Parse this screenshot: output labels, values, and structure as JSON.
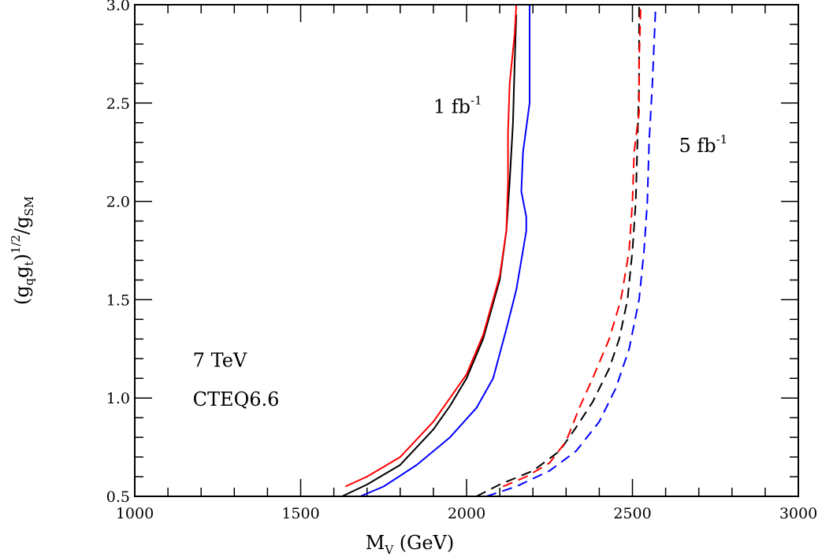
{
  "chart_data": {
    "type": "line",
    "title": "",
    "xlabel": {
      "main": "M",
      "sub": "V",
      "rest": " (GeV)"
    },
    "ylabel": {
      "open": "(g",
      "q": "q",
      "g": "g",
      "t": "t",
      "close": ")",
      "pow": "1/2",
      "slash": "/g",
      "sm": "SM"
    },
    "xlim": [
      1000,
      3000
    ],
    "ylim": [
      0.5,
      3.0
    ],
    "xticks": [
      1000,
      1500,
      2000,
      2500,
      3000
    ],
    "xtick_labels": [
      "1000",
      "1500",
      "2000",
      "2500",
      "3000"
    ],
    "yticks": [
      0.5,
      1.0,
      1.5,
      2.0,
      2.5,
      3.0
    ],
    "ytick_labels": [
      "0.5",
      "1.0",
      "1.5",
      "2.0",
      "2.5",
      "3.0"
    ],
    "x_minor_step": 100,
    "y_minor_step": 0.1,
    "annotations": {
      "lumi1": {
        "text": "1 fb",
        "sup": "-1",
        "x": 1900,
        "y": 2.45
      },
      "lumi5": {
        "text": "5 fb",
        "sup": "-1",
        "x": 2640,
        "y": 2.25
      },
      "energy": {
        "text": "7 TeV",
        "x": 1175,
        "y": 1.16
      },
      "pdf": {
        "text": "CTEQ6.6",
        "x": 1175,
        "y": 0.96
      }
    },
    "series": [
      {
        "name": "1 fb-1 black",
        "color": "#000000",
        "dash": "solid",
        "points": [
          [
            1625,
            0.5
          ],
          [
            1700,
            0.56
          ],
          [
            1800,
            0.66
          ],
          [
            1900,
            0.84
          ],
          [
            1950,
            0.96
          ],
          [
            2000,
            1.1
          ],
          [
            2050,
            1.3
          ],
          [
            2100,
            1.6
          ],
          [
            2120,
            1.85
          ],
          [
            2130,
            2.1
          ],
          [
            2140,
            2.4
          ],
          [
            2145,
            2.7
          ],
          [
            2150,
            2.95
          ]
        ]
      },
      {
        "name": "1 fb-1 red",
        "color": "#ff0000",
        "dash": "solid",
        "points": [
          [
            1635,
            0.55
          ],
          [
            1700,
            0.6
          ],
          [
            1800,
            0.7
          ],
          [
            1900,
            0.88
          ],
          [
            2000,
            1.12
          ],
          [
            2050,
            1.32
          ],
          [
            2100,
            1.62
          ],
          [
            2120,
            1.85
          ],
          [
            2125,
            2.1
          ],
          [
            2125,
            2.35
          ],
          [
            2130,
            2.6
          ],
          [
            2145,
            2.85
          ],
          [
            2150,
            3.0
          ]
        ]
      },
      {
        "name": "1 fb-1 blue",
        "color": "#0000ff",
        "dash": "solid",
        "points": [
          [
            1680,
            0.5
          ],
          [
            1750,
            0.55
          ],
          [
            1850,
            0.66
          ],
          [
            1950,
            0.8
          ],
          [
            2030,
            0.95
          ],
          [
            2080,
            1.1
          ],
          [
            2120,
            1.35
          ],
          [
            2150,
            1.55
          ],
          [
            2170,
            1.75
          ],
          [
            2180,
            1.85
          ],
          [
            2180,
            1.92
          ],
          [
            2165,
            2.05
          ],
          [
            2170,
            2.25
          ],
          [
            2190,
            2.5
          ],
          [
            2190,
            2.75
          ],
          [
            2190,
            3.0
          ]
        ]
      },
      {
        "name": "5 fb-1 black",
        "color": "#000000",
        "dash": "dashed",
        "points": [
          [
            2030,
            0.5
          ],
          [
            2100,
            0.56
          ],
          [
            2200,
            0.63
          ],
          [
            2280,
            0.73
          ],
          [
            2330,
            0.85
          ],
          [
            2380,
            0.98
          ],
          [
            2430,
            1.15
          ],
          [
            2460,
            1.3
          ],
          [
            2485,
            1.5
          ],
          [
            2500,
            1.75
          ],
          [
            2510,
            2.0
          ],
          [
            2515,
            2.3
          ],
          [
            2520,
            2.6
          ],
          [
            2520,
            2.9
          ],
          [
            2520,
            3.0
          ]
        ]
      },
      {
        "name": "5 fb-1 red",
        "color": "#ff0000",
        "dash": "dashed",
        "points": [
          [
            2110,
            0.55
          ],
          [
            2180,
            0.6
          ],
          [
            2250,
            0.67
          ],
          [
            2300,
            0.78
          ],
          [
            2340,
            0.95
          ],
          [
            2380,
            1.1
          ],
          [
            2430,
            1.3
          ],
          [
            2465,
            1.5
          ],
          [
            2490,
            1.75
          ],
          [
            2500,
            2.0
          ],
          [
            2505,
            2.25
          ],
          [
            2520,
            2.45
          ],
          [
            2520,
            2.7
          ],
          [
            2525,
            3.0
          ]
        ]
      },
      {
        "name": "5 fb-1 blue",
        "color": "#0000ff",
        "dash": "dashed",
        "points": [
          [
            2060,
            0.5
          ],
          [
            2150,
            0.55
          ],
          [
            2250,
            0.63
          ],
          [
            2330,
            0.73
          ],
          [
            2400,
            0.88
          ],
          [
            2450,
            1.05
          ],
          [
            2490,
            1.25
          ],
          [
            2520,
            1.5
          ],
          [
            2535,
            1.75
          ],
          [
            2545,
            2.0
          ],
          [
            2550,
            2.3
          ],
          [
            2560,
            2.6
          ],
          [
            2570,
            3.0
          ]
        ]
      }
    ]
  }
}
